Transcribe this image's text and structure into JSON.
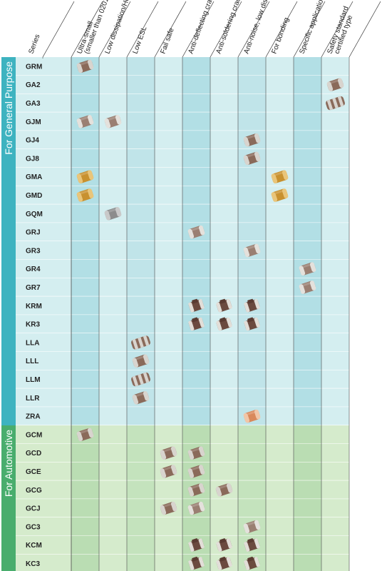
{
  "headers": {
    "series": "Series",
    "columns": [
      [
        "Ultra-small",
        "(smaller than 0201)"
      ],
      [
        "Low dissipation/HQ"
      ],
      [
        "Low ESL"
      ],
      [
        "Fail safe"
      ],
      [
        "Anti-deflecting crack"
      ],
      [
        "Anti-soldering crack"
      ],
      [
        "Anti-noise, low distortion"
      ],
      [
        "For bonding"
      ],
      [
        "Specific applications"
      ],
      [
        "Safety standard",
        "certified type"
      ]
    ]
  },
  "colors": {
    "general_bar": "#3eb3c0",
    "general_row": "#d4eef0",
    "general_row_alt": "#c6e8ec",
    "general_highlight_col": "#aedde3",
    "auto_bar": "#49ad6d",
    "auto_row": "#d5ebcc",
    "auto_row_alt": "#c8e3be",
    "auto_highlight_col": "#b7dcb0",
    "chip_body": "#8a6a5a",
    "chip_cap": "#d8d4ce",
    "chip_gold": "#c8912f",
    "chip_orange": "#d9895c"
  },
  "groups": [
    {
      "label": "For General Purpose",
      "kind": "general",
      "rows": [
        {
          "series": "GRM",
          "marks": [
            {
              "col": 0,
              "icon": "chip-icon"
            }
          ]
        },
        {
          "series": "GA2",
          "marks": [
            {
              "col": 9,
              "icon": "chip-icon"
            }
          ]
        },
        {
          "series": "GA3",
          "marks": [
            {
              "col": 9,
              "icon": "chip-array-icon"
            }
          ]
        },
        {
          "series": "GJM",
          "marks": [
            {
              "col": 0,
              "icon": "chip-light-icon"
            },
            {
              "col": 1,
              "icon": "chip-light-icon"
            }
          ]
        },
        {
          "series": "GJ4",
          "marks": [
            {
              "col": 6,
              "icon": "chip-icon"
            }
          ]
        },
        {
          "series": "GJ8",
          "marks": [
            {
              "col": 6,
              "icon": "chip-icon"
            }
          ]
        },
        {
          "series": "GMA",
          "marks": [
            {
              "col": 0,
              "icon": "chip-gold-icon"
            },
            {
              "col": 7,
              "icon": "chip-gold-icon"
            }
          ]
        },
        {
          "series": "GMD",
          "marks": [
            {
              "col": 0,
              "icon": "chip-gold-icon"
            },
            {
              "col": 7,
              "icon": "chip-gold-icon"
            }
          ]
        },
        {
          "series": "GQM",
          "marks": [
            {
              "col": 1,
              "icon": "chip-gray-icon"
            }
          ]
        },
        {
          "series": "GRJ",
          "marks": [
            {
              "col": 4,
              "icon": "chip-light-icon"
            }
          ]
        },
        {
          "series": "GR3",
          "marks": [
            {
              "col": 6,
              "icon": "chip-light-icon"
            }
          ]
        },
        {
          "series": "GR4",
          "marks": [
            {
              "col": 8,
              "icon": "chip-light-icon"
            }
          ]
        },
        {
          "series": "GR7",
          "marks": [
            {
              "col": 8,
              "icon": "chip-light-icon"
            }
          ]
        },
        {
          "series": "KRM",
          "marks": [
            {
              "col": 4,
              "icon": "stacked-chip-icon"
            },
            {
              "col": 5,
              "icon": "stacked-chip-icon"
            },
            {
              "col": 6,
              "icon": "stacked-chip-icon"
            }
          ]
        },
        {
          "series": "KR3",
          "marks": [
            {
              "col": 4,
              "icon": "stacked-chip-icon"
            },
            {
              "col": 5,
              "icon": "stacked-chip-icon"
            },
            {
              "col": 6,
              "icon": "stacked-chip-icon"
            }
          ]
        },
        {
          "series": "LLA",
          "marks": [
            {
              "col": 2,
              "icon": "chip-array-icon"
            }
          ]
        },
        {
          "series": "LLL",
          "marks": [
            {
              "col": 2,
              "icon": "chip-icon"
            }
          ]
        },
        {
          "series": "LLM",
          "marks": [
            {
              "col": 2,
              "icon": "chip-array-icon"
            }
          ]
        },
        {
          "series": "LLR",
          "marks": [
            {
              "col": 2,
              "icon": "chip-icon"
            }
          ]
        },
        {
          "series": "ZRA",
          "marks": [
            {
              "col": 6,
              "icon": "chip-orange-icon"
            }
          ]
        }
      ]
    },
    {
      "label": "For Automotive",
      "kind": "auto",
      "rows": [
        {
          "series": "GCM",
          "marks": [
            {
              "col": 0,
              "icon": "chip-icon"
            }
          ]
        },
        {
          "series": "GCD",
          "marks": [
            {
              "col": 3,
              "icon": "chip-icon"
            },
            {
              "col": 4,
              "icon": "chip-icon"
            }
          ]
        },
        {
          "series": "GCE",
          "marks": [
            {
              "col": 3,
              "icon": "chip-icon"
            },
            {
              "col": 4,
              "icon": "chip-icon"
            }
          ]
        },
        {
          "series": "GCG",
          "marks": [
            {
              "col": 4,
              "icon": "chip-icon"
            },
            {
              "col": 5,
              "icon": "chip-icon"
            }
          ]
        },
        {
          "series": "GCJ",
          "marks": [
            {
              "col": 3,
              "icon": "chip-icon"
            },
            {
              "col": 4,
              "icon": "chip-light-icon"
            }
          ]
        },
        {
          "series": "GC3",
          "marks": [
            {
              "col": 6,
              "icon": "chip-light-icon"
            }
          ]
        },
        {
          "series": "KCM",
          "marks": [
            {
              "col": 4,
              "icon": "stacked-chip-icon"
            },
            {
              "col": 5,
              "icon": "stacked-chip-icon"
            },
            {
              "col": 6,
              "icon": "stacked-chip-icon"
            }
          ]
        },
        {
          "series": "KC3",
          "marks": [
            {
              "col": 4,
              "icon": "stacked-chip-icon"
            },
            {
              "col": 5,
              "icon": "stacked-chip-icon"
            },
            {
              "col": 6,
              "icon": "stacked-chip-icon"
            }
          ]
        }
      ]
    }
  ]
}
